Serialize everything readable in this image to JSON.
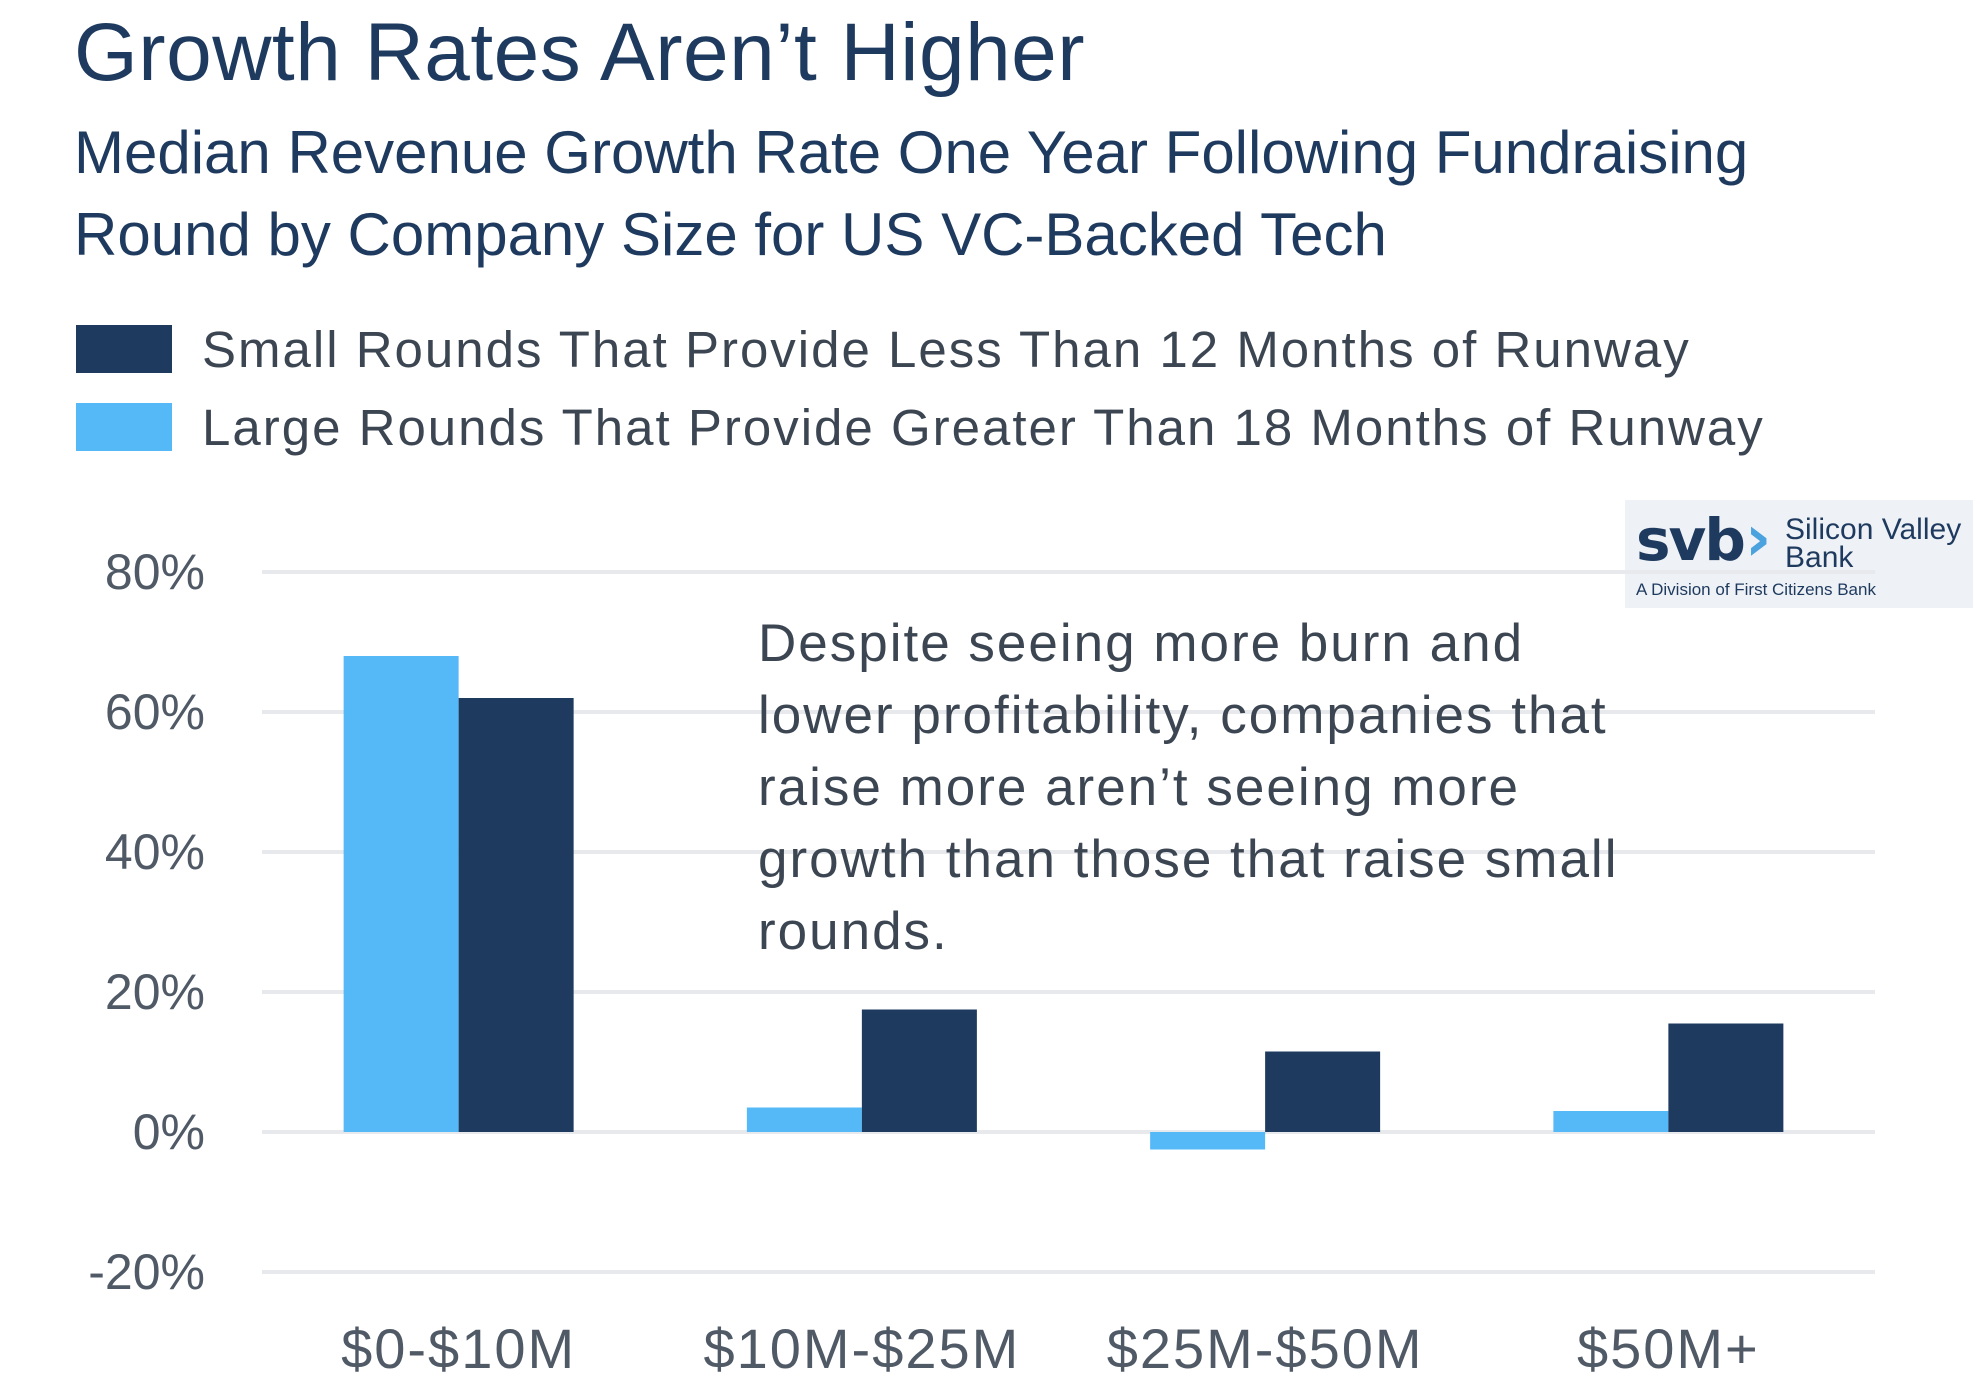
{
  "header": {
    "title": "Growth Rates Aren’t Higher",
    "subtitle": "Median Revenue Growth Rate One Year Following Fundraising Round by Company Size for US VC-Backed Tech"
  },
  "legend": [
    {
      "label": "Small Rounds That Provide Less Than 12 Months of Runway",
      "color": "#1e3a5f"
    },
    {
      "label": "Large Rounds That Provide Greater Than 18 Months of Runway",
      "color": "#56b9f7"
    }
  ],
  "logo": {
    "mark": "svb",
    "name": "Silicon Valley Bank",
    "sub": "A Division of First Citizens Bank"
  },
  "annotation": "Despite seeing more burn and lower profitability, companies that raise more aren’t seeing more growth than those that raise small rounds.",
  "chart_data": {
    "type": "bar",
    "title": "Growth Rates Aren’t Higher",
    "categories": [
      "$0-$10M",
      "$10M-$25M",
      "$25M-$50M",
      "$50M+"
    ],
    "series": [
      {
        "name": "Large Rounds That Provide Greater Than 18 Months of Runway",
        "color": "#56b9f7",
        "values": [
          68,
          3.5,
          -2.5,
          3
        ]
      },
      {
        "name": "Small Rounds That Provide Less Than 12 Months of Runway",
        "color": "#1e3a5f",
        "values": [
          62,
          17.5,
          11.5,
          15.5
        ]
      }
    ],
    "ylim": [
      -20,
      80
    ],
    "yticks": [
      80,
      60,
      40,
      20,
      0,
      -20
    ],
    "ytick_labels": [
      "80%",
      "60%",
      "40%",
      "20%",
      "0%",
      "-20%"
    ],
    "grid": true,
    "legend_position": "top-left"
  }
}
